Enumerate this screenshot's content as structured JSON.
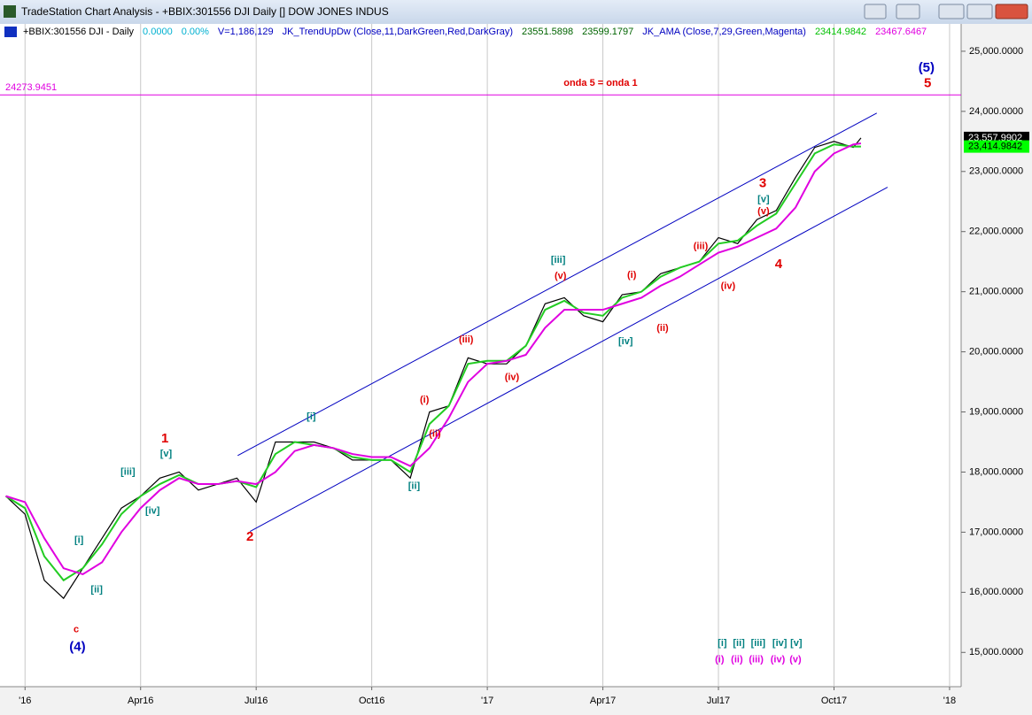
{
  "window": {
    "title": "TradeStation Chart Analysis - +BBIX:301556 DJI Daily [] DOW JONES INDUS"
  },
  "legend": {
    "items": [
      {
        "text": "+BBIX:301556 DJI - Daily",
        "color": "#000000"
      },
      {
        "text": "0.0000",
        "color": "#00b0d0"
      },
      {
        "text": "0.00%",
        "color": "#00b0d0"
      },
      {
        "text": "V=1,186,129",
        "color": "#0000c0"
      },
      {
        "text": "JK_TrendUpDw (Close,11,DarkGreen,Red,DarkGray)",
        "color": "#0000c0"
      },
      {
        "text": "23551.5898",
        "color": "#006400"
      },
      {
        "text": "23599.1797",
        "color": "#006400"
      },
      {
        "text": "JK_AMA (Close,7,29,Green,Magenta)",
        "color": "#0000c0"
      },
      {
        "text": "23414.9842",
        "color": "#00c000"
      },
      {
        "text": "23467.6467",
        "color": "#e000e0"
      }
    ]
  },
  "chart_data": {
    "type": "line",
    "x": [
      -0.5,
      0,
      0.5,
      1,
      1.5,
      2,
      2.5,
      3,
      3.5,
      4,
      4.5,
      5,
      5.5,
      6,
      6.5,
      7,
      7.5,
      8,
      8.5,
      9,
      9.5,
      10,
      10.5,
      11,
      11.5,
      12,
      12.5,
      13,
      13.5,
      14,
      14.5,
      15,
      15.5,
      16,
      16.5,
      17,
      17.5,
      18,
      18.5,
      19,
      19.5,
      20,
      20.5,
      21,
      21.5,
      21.7
    ],
    "series": [
      {
        "name": "DJI",
        "color": "#000000",
        "values": [
          17600,
          17300,
          16200,
          15900,
          16400,
          16900,
          17400,
          17600,
          17900,
          18000,
          17700,
          17800,
          17900,
          17500,
          18500,
          18500,
          18500,
          18400,
          18200,
          18200,
          18200,
          17900,
          19000,
          19100,
          19900,
          19800,
          19800,
          20100,
          20800,
          20900,
          20600,
          20500,
          20950,
          21000,
          21300,
          21400,
          21500,
          21900,
          21800,
          22200,
          22350,
          22900,
          23400,
          23500,
          23400,
          23558
        ]
      },
      {
        "name": "AMA fast",
        "color": "#22cc22",
        "values": [
          17600,
          17400,
          16600,
          16200,
          16400,
          16800,
          17300,
          17600,
          17800,
          17950,
          17800,
          17800,
          17850,
          17750,
          18300,
          18500,
          18450,
          18400,
          18250,
          18200,
          18200,
          18000,
          18800,
          19100,
          19800,
          19850,
          19850,
          20100,
          20700,
          20850,
          20650,
          20600,
          20900,
          21000,
          21250,
          21400,
          21500,
          21800,
          21850,
          22100,
          22300,
          22800,
          23300,
          23450,
          23414,
          23415
        ]
      },
      {
        "name": "AMA slow",
        "color": "#e000e0",
        "values": [
          17600,
          17500,
          16900,
          16400,
          16300,
          16500,
          17000,
          17400,
          17700,
          17900,
          17800,
          17800,
          17850,
          17800,
          18000,
          18350,
          18450,
          18400,
          18300,
          18250,
          18250,
          18100,
          18400,
          18900,
          19500,
          19800,
          19850,
          19950,
          20400,
          20700,
          20700,
          20700,
          20800,
          20900,
          21100,
          21250,
          21450,
          21650,
          21750,
          21900,
          22050,
          22400,
          23000,
          23300,
          23450,
          23468
        ]
      }
    ],
    "xlim": [
      -0.65,
      24.3
    ],
    "xticks": [
      {
        "value": 0,
        "label": "'16"
      },
      {
        "value": 3,
        "label": "Apr16"
      },
      {
        "value": 6,
        "label": "Jul16"
      },
      {
        "value": 9,
        "label": "Oct16"
      },
      {
        "value": 12,
        "label": "'17"
      },
      {
        "value": 15,
        "label": "Apr17"
      },
      {
        "value": 18,
        "label": "Jul17"
      },
      {
        "value": 21,
        "label": "Oct17"
      },
      {
        "value": 24,
        "label": "'18"
      }
    ],
    "ylim": [
      14430,
      25455
    ],
    "yticks": [
      {
        "value": 15000,
        "label": "15,000.0000"
      },
      {
        "value": 16000,
        "label": "16,000.0000"
      },
      {
        "value": 17000,
        "label": "17,000.0000"
      },
      {
        "value": 18000,
        "label": "18,000.0000"
      },
      {
        "value": 19000,
        "label": "19,000.0000"
      },
      {
        "value": 20000,
        "label": "20,000.0000"
      },
      {
        "value": 21000,
        "label": "21,000.0000"
      },
      {
        "value": 22000,
        "label": "22,000.0000"
      },
      {
        "value": 23000,
        "label": "23,000.0000"
      },
      {
        "value": 24000,
        "label": "24,000.0000"
      },
      {
        "value": 25000,
        "label": "25,000.0000"
      }
    ],
    "level": {
      "value": 24273.9451,
      "color": "#e000e0"
    },
    "last_values": [
      {
        "value": 23557.9902,
        "label": "23,557.9902",
        "color": "#000000"
      },
      {
        "value": 23414.9842,
        "label": "23,414.9842",
        "color": "#00ff00"
      }
    ],
    "trendlines": [
      {
        "x": [
          5.52,
          22.11
        ],
        "y": [
          18275,
          23971
        ],
        "color": "#0000c0"
      },
      {
        "x": [
          5.84,
          22.39
        ],
        "y": [
          17012,
          22738
        ],
        "color": "#0000c0"
      }
    ],
    "annotations": [
      {
        "text": "(4)",
        "color": "#0000c0",
        "x": 1.36,
        "y": 15088
      },
      {
        "text": "c",
        "color": "#e00000",
        "x": 1.33,
        "y": 15380
      },
      {
        "text": "[i]",
        "color": "#008080",
        "x": 1.4,
        "y": 16865
      },
      {
        "text": "[ii]",
        "color": "#008080",
        "x": 1.86,
        "y": 16040
      },
      {
        "text": "[iii]",
        "color": "#008080",
        "x": 2.67,
        "y": 17996
      },
      {
        "text": "[iv]",
        "color": "#008080",
        "x": 3.31,
        "y": 17350
      },
      {
        "text": "[v]",
        "color": "#008080",
        "x": 3.66,
        "y": 18300
      },
      {
        "text": "1",
        "color": "#e00000",
        "x": 3.63,
        "y": 18550
      },
      {
        "text": "2",
        "color": "#e00000",
        "x": 5.84,
        "y": 16920
      },
      {
        "text": "[i]",
        "color": "#008080",
        "x": 7.43,
        "y": 18920
      },
      {
        "text": "[ii]",
        "color": "#008080",
        "x": 10.1,
        "y": 17760
      },
      {
        "text": "(i)",
        "color": "#e00000",
        "x": 10.37,
        "y": 19200
      },
      {
        "text": "(ii)",
        "color": "#e00000",
        "x": 10.64,
        "y": 18630
      },
      {
        "text": "(iii)",
        "color": "#e00000",
        "x": 11.45,
        "y": 20200
      },
      {
        "text": "(iv)",
        "color": "#e00000",
        "x": 12.64,
        "y": 19570
      },
      {
        "text": "[iii]",
        "color": "#008080",
        "x": 13.84,
        "y": 21520
      },
      {
        "text": "(v)",
        "color": "#e00000",
        "x": 13.9,
        "y": 21255
      },
      {
        "text": "[iv]",
        "color": "#008080",
        "x": 15.59,
        "y": 20170
      },
      {
        "text": "(i)",
        "color": "#e00000",
        "x": 15.75,
        "y": 21270
      },
      {
        "text": "(ii)",
        "color": "#e00000",
        "x": 16.55,
        "y": 20390
      },
      {
        "text": "(iii)",
        "color": "#e00000",
        "x": 17.54,
        "y": 21750
      },
      {
        "text": "(iv)",
        "color": "#e00000",
        "x": 18.25,
        "y": 21090
      },
      {
        "text": "[v]",
        "color": "#008080",
        "x": 19.17,
        "y": 22530
      },
      {
        "text": "(v)",
        "color": "#e00000",
        "x": 19.17,
        "y": 22330
      },
      {
        "text": "3",
        "color": "#e00000",
        "x": 19.15,
        "y": 22800
      },
      {
        "text": "4",
        "color": "#e00000",
        "x": 19.56,
        "y": 21450
      },
      {
        "text": "(5)",
        "color": "#0000c0",
        "x": 23.4,
        "y": 24720
      },
      {
        "text": "5",
        "color": "#e00000",
        "x": 23.43,
        "y": 24460
      },
      {
        "text": "onda 5 = onda 1",
        "color": "#e00000",
        "x": 14.94,
        "y": 24470
      },
      {
        "text": "[i]",
        "color": "#008080",
        "x": 18.1,
        "y": 15150
      },
      {
        "text": "[ii]",
        "color": "#008080",
        "x": 18.53,
        "y": 15150
      },
      {
        "text": "[iii]",
        "color": "#008080",
        "x": 19.03,
        "y": 15150
      },
      {
        "text": "[iv]",
        "color": "#008080",
        "x": 19.59,
        "y": 15150
      },
      {
        "text": "[v]",
        "color": "#008080",
        "x": 20.02,
        "y": 15150
      },
      {
        "text": "(i)",
        "color": "#e000e0",
        "x": 18.03,
        "y": 14880
      },
      {
        "text": "(ii)",
        "color": "#e000e0",
        "x": 18.48,
        "y": 14880
      },
      {
        "text": "(iii)",
        "color": "#e000e0",
        "x": 18.98,
        "y": 14880
      },
      {
        "text": "(iv)",
        "color": "#e000e0",
        "x": 19.54,
        "y": 14880
      },
      {
        "text": "(v)",
        "color": "#e000e0",
        "x": 20.0,
        "y": 14880
      }
    ]
  }
}
